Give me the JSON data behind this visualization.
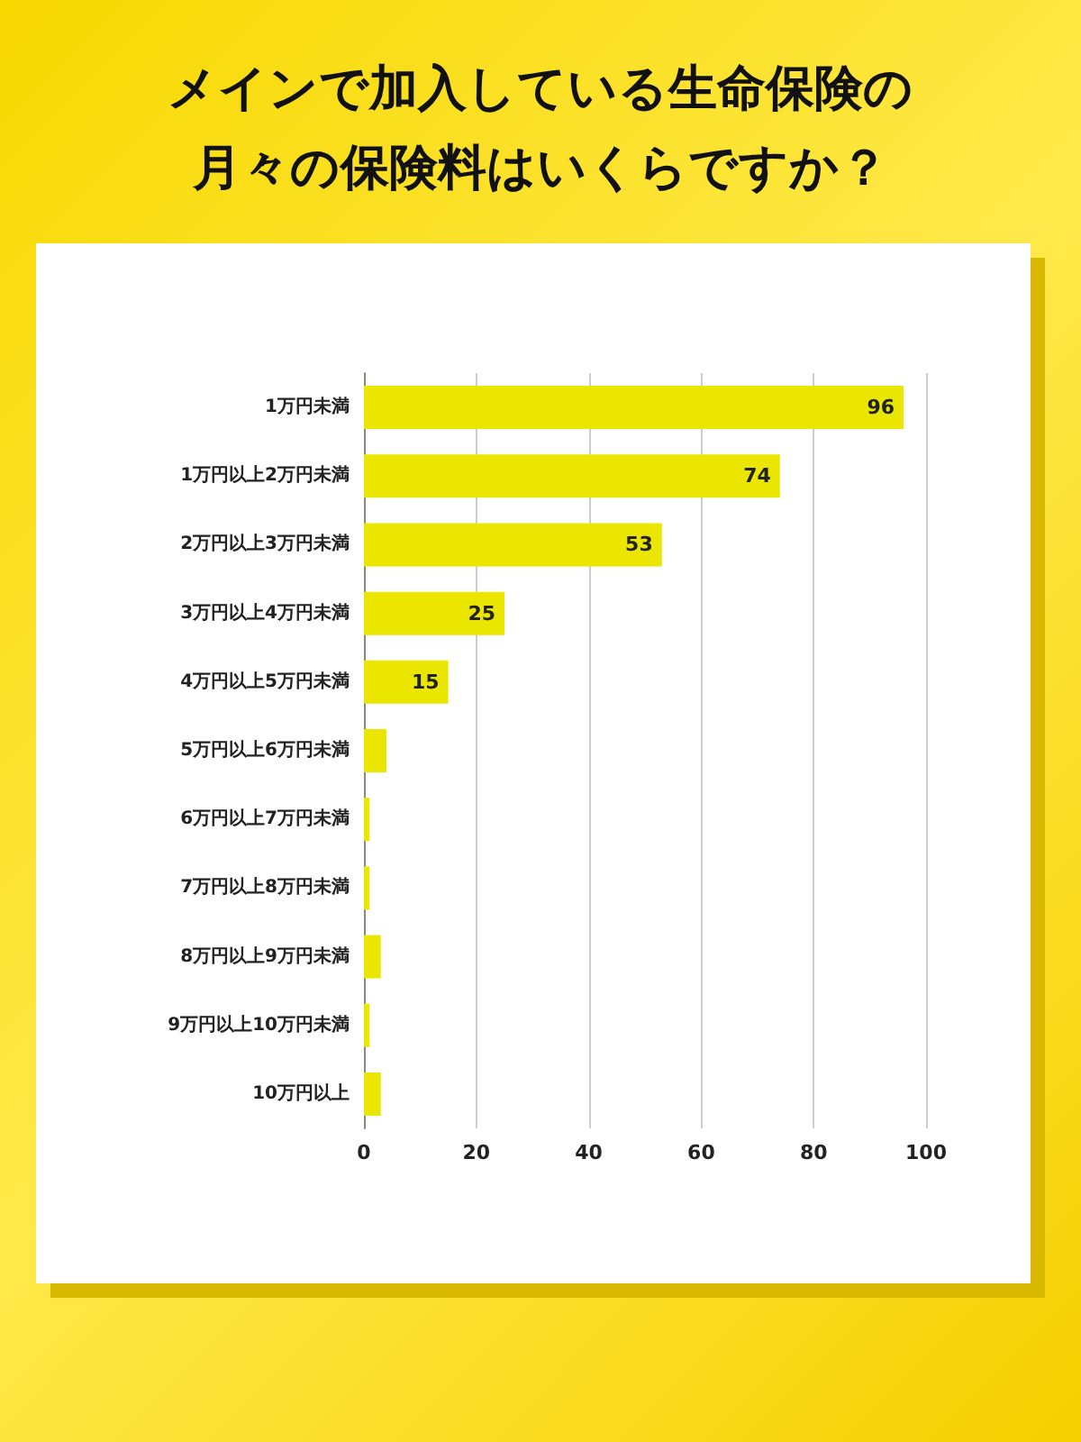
{
  "chart_data": {
    "type": "bar",
    "orientation": "horizontal",
    "title": "メインで加入している生命保険の月々の保険料はいくらですか？",
    "categories": [
      "1万円未満",
      "1万円以上2万円未満",
      "2万円以上3万円未満",
      "3万円以上4万円未満",
      "4万円以上5万円未満",
      "5万円以上6万円未満",
      "6万円以上7万円未満",
      "7万円以上8万円未満",
      "8万円以上9万円未満",
      "9万円以上10万円未満",
      "10万円以上"
    ],
    "values": [
      96,
      74,
      53,
      25,
      15,
      4,
      1,
      1,
      3,
      1,
      3
    ],
    "value_labels": [
      "96",
      "74",
      "53",
      "25",
      "15",
      null,
      null,
      null,
      null,
      null,
      null
    ],
    "color": "#ebe600",
    "xlim": [
      0,
      100
    ],
    "xticks": [
      0,
      20,
      40,
      60,
      80,
      100
    ],
    "grid": "x"
  }
}
